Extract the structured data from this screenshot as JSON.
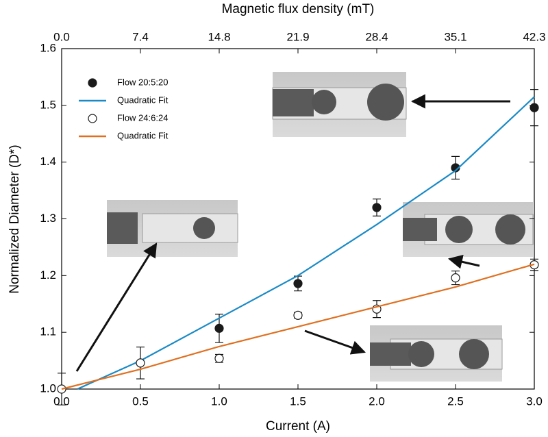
{
  "chart_data": {
    "type": "scatter",
    "x_label": "Current (A)",
    "y_label": "Normalized Diameter (D*)",
    "x2_label": "Magnetic flux density (mT)",
    "xlim": [
      0,
      3
    ],
    "ylim": [
      1.0,
      1.6
    ],
    "xticks": [
      {
        "value": 0,
        "label": "0.0"
      },
      0.5,
      {
        "value": 1,
        "label": "1.0"
      },
      1.5,
      {
        "value": 2,
        "label": "2.0"
      },
      2.5,
      {
        "value": 3,
        "label": "3.0"
      }
    ],
    "yticks": [
      {
        "value": 1,
        "label": "1.0"
      },
      1.1,
      1.2,
      1.3,
      1.4,
      1.5,
      1.6
    ],
    "x2ticks": [
      {
        "value": 0,
        "label": "0.0"
      },
      7.4,
      14.8,
      21.9,
      28.4,
      35.1,
      42.3
    ],
    "legend": "upper left",
    "series": [
      {
        "name": "Flow 20:5:20",
        "type": "scatter",
        "marker": "filled",
        "color": "#1a1a1a",
        "x": [
          1.0,
          1.5,
          2.0,
          2.5,
          3.0
        ],
        "values": [
          1.107,
          1.186,
          1.32,
          1.39,
          1.496
        ],
        "errors": [
          0.025,
          0.013,
          0.015,
          0.02,
          0.032
        ]
      },
      {
        "name": "Quadratic Fit",
        "type": "line",
        "color": "#1a8ac6",
        "x": [
          0.1,
          0.5,
          1.0,
          1.5,
          2.0,
          2.5,
          3.0
        ],
        "values": [
          1.0,
          1.05,
          1.125,
          1.2,
          1.29,
          1.385,
          1.515
        ]
      },
      {
        "name": "Flow 24:6:24",
        "type": "scatter",
        "marker": "open",
        "color": "#1a1a1a",
        "x": [
          0,
          0.5,
          1.0,
          1.5,
          2.0,
          2.5,
          3.0
        ],
        "values": [
          1.0,
          1.046,
          1.054,
          1.13,
          1.141,
          1.196,
          1.219
        ],
        "errors": [
          0.028,
          0.028,
          0.007,
          0.005,
          0.015,
          0.012,
          0.01
        ]
      },
      {
        "name": "Quadratic Fit",
        "type": "line",
        "color": "#e07020",
        "x": [
          0,
          0.5,
          1.0,
          1.5,
          2.0,
          2.5,
          3.0
        ],
        "values": [
          1.0,
          1.035,
          1.075,
          1.11,
          1.145,
          1.18,
          1.22
        ]
      }
    ]
  }
}
